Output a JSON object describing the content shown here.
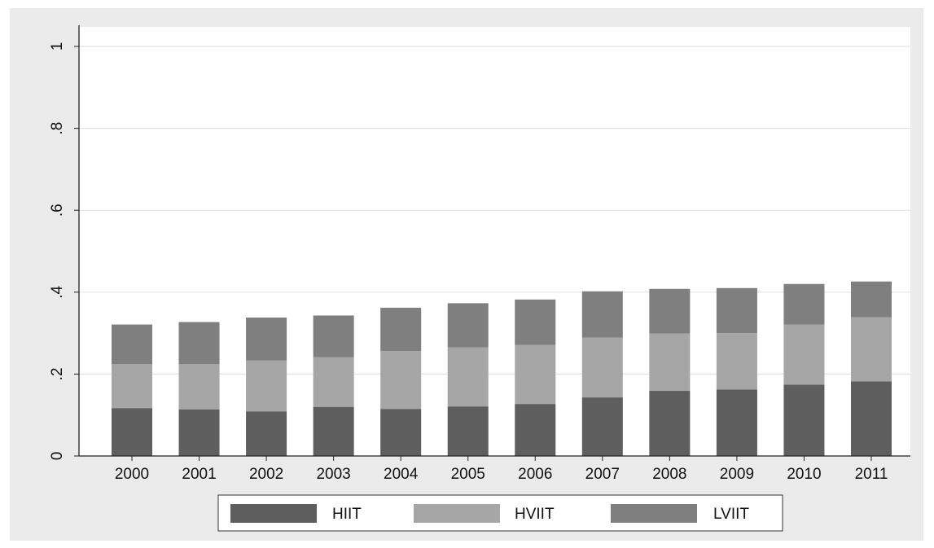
{
  "chart_data": {
    "type": "bar",
    "stacked": true,
    "categories": [
      "2000",
      "2001",
      "2002",
      "2003",
      "2004",
      "2005",
      "2006",
      "2007",
      "2008",
      "2009",
      "2010",
      "2011"
    ],
    "series": [
      {
        "name": "HIIT",
        "color": "#5e5e5e",
        "values": [
          0.117,
          0.114,
          0.109,
          0.12,
          0.115,
          0.121,
          0.127,
          0.143,
          0.159,
          0.162,
          0.174,
          0.182
        ]
      },
      {
        "name": "HVIIT",
        "color": "#a6a6a6",
        "values": [
          0.107,
          0.11,
          0.124,
          0.121,
          0.141,
          0.144,
          0.144,
          0.146,
          0.14,
          0.138,
          0.147,
          0.157
        ]
      },
      {
        "name": "LVIIT",
        "color": "#7f7f7f",
        "values": [
          0.097,
          0.103,
          0.105,
          0.102,
          0.106,
          0.108,
          0.111,
          0.113,
          0.109,
          0.11,
          0.099,
          0.087
        ]
      }
    ],
    "ylim": [
      0,
      1
    ],
    "yticks": [
      {
        "value": 0,
        "label": "0"
      },
      {
        "value": 0.2,
        "label": ".2"
      },
      {
        "value": 0.4,
        "label": ".4"
      },
      {
        "value": 0.6,
        "label": ".6"
      },
      {
        "value": 0.8,
        "label": ".8"
      },
      {
        "value": 1,
        "label": "1"
      }
    ],
    "grid": true,
    "legend_position": "bottom",
    "title": "",
    "xlabel": "",
    "ylabel": ""
  }
}
